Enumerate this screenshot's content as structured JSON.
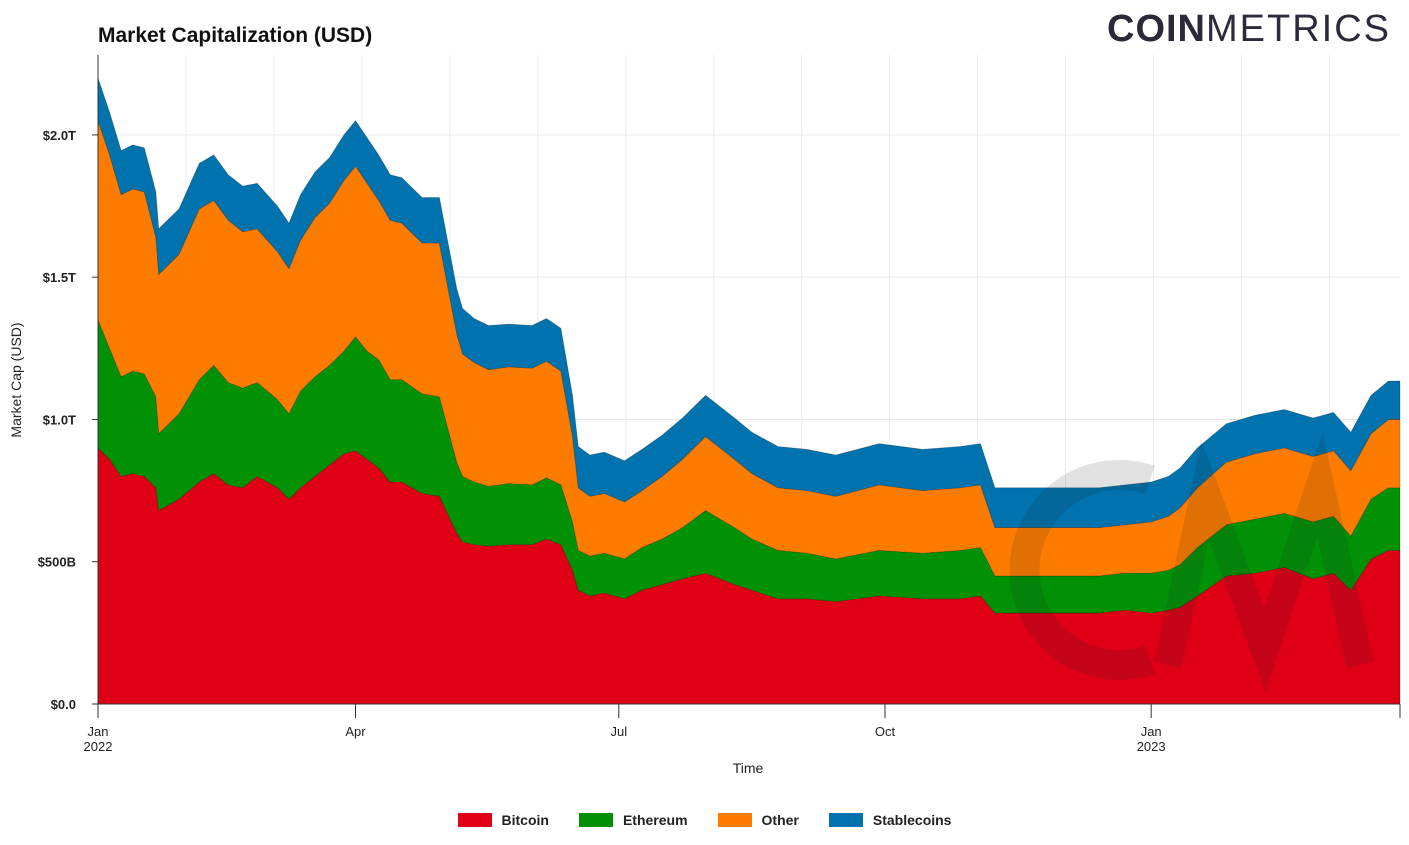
{
  "logo": {
    "bold": "COIN",
    "light": "METRICS"
  },
  "chart_data": {
    "type": "area",
    "stacked": true,
    "title": "Market Capitalization (USD)",
    "xlabel": "Time",
    "ylabel": "Market Cap (USD)",
    "ylim": [
      0,
      2200
    ],
    "units": "billions USD",
    "y_ticks": [
      {
        "value": 0,
        "label": "$0.0"
      },
      {
        "value": 500,
        "label": "$500B"
      },
      {
        "value": 1000,
        "label": "$1.0T"
      },
      {
        "value": 1500,
        "label": "$1.5T"
      },
      {
        "value": 2000,
        "label": "$2.0T"
      }
    ],
    "xlim": [
      0,
      450
    ],
    "x_ticks": [
      {
        "day": 0,
        "label": "Jan",
        "sub": "2022"
      },
      {
        "day": 89,
        "label": "Apr",
        "sub": ""
      },
      {
        "day": 180,
        "label": "Jul",
        "sub": ""
      },
      {
        "day": 272,
        "label": "Oct",
        "sub": ""
      },
      {
        "day": 364,
        "label": "Jan",
        "sub": "2023"
      }
    ],
    "x": [
      0,
      4,
      8,
      12,
      16,
      20,
      21,
      28,
      35,
      40,
      45,
      50,
      55,
      62,
      66,
      70,
      75,
      80,
      85,
      89,
      93,
      97,
      101,
      105,
      112,
      118,
      124,
      126,
      130,
      135,
      142,
      150,
      155,
      160,
      164,
      166,
      170,
      175,
      182,
      188,
      195,
      202,
      210,
      220,
      226,
      235,
      245,
      255,
      270,
      285,
      298,
      305,
      310,
      330,
      346,
      355,
      364,
      370,
      374,
      380,
      390,
      400,
      410,
      420,
      427,
      433,
      440,
      446,
      450
    ],
    "series": [
      {
        "name": "Bitcoin",
        "color": "#e00016",
        "values": [
          900,
          860,
          800,
          810,
          800,
          760,
          680,
          720,
          780,
          810,
          770,
          760,
          800,
          760,
          720,
          760,
          800,
          840,
          880,
          890,
          860,
          830,
          780,
          780,
          740,
          730,
          600,
          570,
          560,
          555,
          560,
          560,
          580,
          560,
          470,
          400,
          380,
          390,
          370,
          400,
          420,
          440,
          460,
          420,
          400,
          370,
          370,
          360,
          380,
          370,
          370,
          380,
          320,
          320,
          320,
          330,
          320,
          330,
          340,
          380,
          450,
          460,
          480,
          440,
          460,
          400,
          510,
          540,
          540
        ]
      },
      {
        "name": "Ethereum",
        "color": "#009106",
        "values": [
          450,
          390,
          350,
          360,
          360,
          320,
          270,
          300,
          360,
          380,
          360,
          350,
          330,
          310,
          300,
          340,
          350,
          350,
          360,
          400,
          380,
          380,
          360,
          360,
          350,
          350,
          250,
          230,
          220,
          210,
          215,
          210,
          215,
          210,
          170,
          140,
          140,
          140,
          140,
          150,
          160,
          180,
          220,
          200,
          180,
          170,
          160,
          150,
          160,
          160,
          170,
          170,
          130,
          130,
          130,
          130,
          140,
          140,
          150,
          170,
          180,
          190,
          190,
          200,
          200,
          190,
          210,
          220,
          220
        ]
      },
      {
        "name": "Other",
        "color": "#fd7c00",
        "values": [
          700,
          680,
          640,
          640,
          640,
          560,
          560,
          560,
          600,
          580,
          570,
          550,
          540,
          520,
          510,
          530,
          560,
          570,
          600,
          600,
          590,
          560,
          560,
          550,
          530,
          540,
          450,
          430,
          420,
          410,
          410,
          410,
          410,
          400,
          300,
          220,
          210,
          210,
          200,
          200,
          220,
          240,
          260,
          240,
          230,
          220,
          220,
          220,
          230,
          220,
          220,
          220,
          170,
          170,
          170,
          170,
          180,
          190,
          200,
          210,
          220,
          230,
          230,
          230,
          230,
          230,
          230,
          240,
          240
        ]
      },
      {
        "name": "Stablecoins",
        "color": "#0072ad",
        "values": [
          150,
          150,
          155,
          155,
          155,
          160,
          160,
          160,
          160,
          160,
          160,
          160,
          160,
          160,
          160,
          160,
          160,
          160,
          160,
          160,
          160,
          160,
          160,
          160,
          160,
          160,
          160,
          160,
          155,
          155,
          150,
          150,
          150,
          150,
          145,
          145,
          145,
          145,
          145,
          145,
          145,
          145,
          145,
          145,
          145,
          145,
          145,
          145,
          145,
          145,
          145,
          145,
          140,
          140,
          140,
          140,
          140,
          140,
          140,
          140,
          135,
          135,
          135,
          135,
          135,
          135,
          135,
          135,
          135
        ]
      }
    ]
  }
}
